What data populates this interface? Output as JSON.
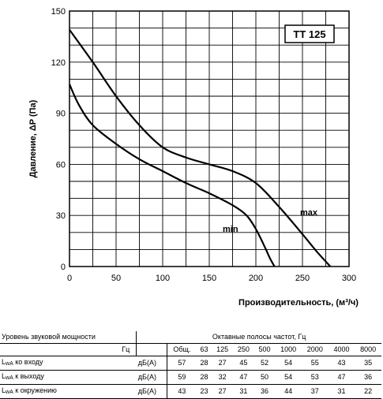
{
  "chart_data": {
    "type": "line",
    "title": "",
    "xlabel": "Производительность, (м³/ч)",
    "ylabel": "Давление, ΔP (Па)",
    "xlim": [
      0,
      300
    ],
    "ylim": [
      0,
      150
    ],
    "xticks": [
      0,
      50,
      100,
      150,
      200,
      250,
      300
    ],
    "yticks": [
      0,
      30,
      60,
      90,
      120,
      150
    ],
    "grid": true,
    "model_label": "TT 125",
    "series": [
      {
        "name": "max",
        "x": [
          0,
          25,
          50,
          75,
          100,
          125,
          150,
          175,
          200,
          225,
          250,
          265,
          280
        ],
        "y": [
          139,
          120,
          100,
          83,
          70,
          64,
          60,
          56,
          49,
          35,
          19,
          9,
          0
        ]
      },
      {
        "name": "min",
        "x": [
          0,
          10,
          25,
          50,
          75,
          100,
          125,
          150,
          175,
          190,
          200,
          210,
          215,
          220
        ],
        "y": [
          107,
          95,
          83,
          72,
          63,
          56,
          49,
          43,
          36,
          30,
          22,
          11,
          5,
          0
        ]
      }
    ]
  },
  "sound_table": {
    "title": "Уровень звуковой мощности",
    "octave_header": "Октавные полосы частот, Гц",
    "hz_label": "Гц",
    "columns": [
      "Общ.",
      "63",
      "125",
      "250",
      "500",
      "1000",
      "2000",
      "4000",
      "8000"
    ],
    "rows": [
      {
        "label": "L",
        "sub": "wA",
        "suffix": " ко входу",
        "unit": "дБ(А)",
        "values": [
          "57",
          "28",
          "27",
          "45",
          "52",
          "54",
          "55",
          "43",
          "35"
        ]
      },
      {
        "label": "L",
        "sub": "wA",
        "suffix": " к выходу",
        "unit": "дБ(А)",
        "values": [
          "59",
          "28",
          "32",
          "47",
          "50",
          "54",
          "53",
          "47",
          "36"
        ]
      },
      {
        "label": "L",
        "sub": "wA",
        "suffix": " к окружению",
        "unit": "дБ(А)",
        "values": [
          "43",
          "23",
          "27",
          "31",
          "36",
          "44",
          "37",
          "31",
          "22"
        ]
      }
    ]
  }
}
